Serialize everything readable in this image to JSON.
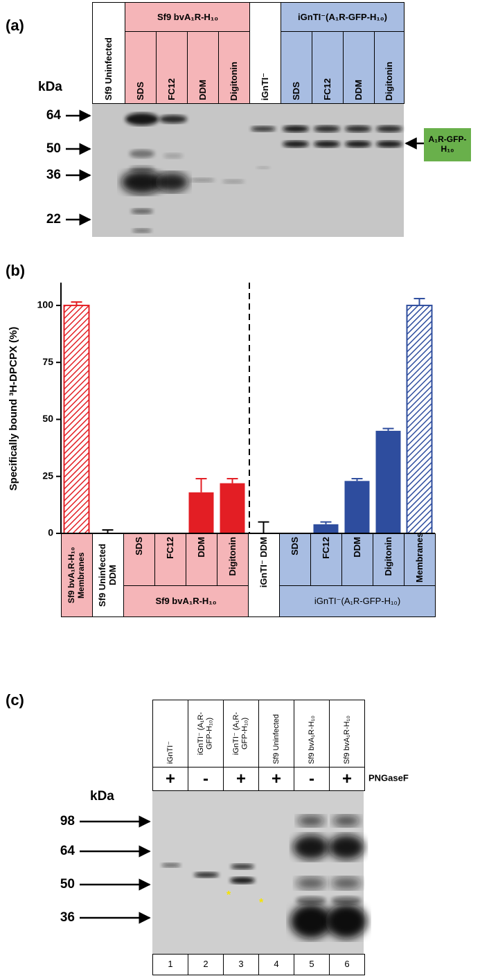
{
  "panel_a": {
    "label": "(a)",
    "kda": "kDa",
    "headers": {
      "uninfected": "Sf9 Uninfected",
      "group1": "Sf9 bvA₁R-H₁₀",
      "group1_lanes": [
        "SDS",
        "FC12",
        "DDM",
        "Digitonin"
      ],
      "control": "iGnTI⁻",
      "group2": "iGnTI⁻(A₁R-GFP-H₁₀)",
      "group2_lanes": [
        "SDS",
        "FC12",
        "DDM",
        "Digitonin"
      ]
    },
    "markers": [
      64,
      50,
      36,
      22
    ],
    "band_label": "A₁R-GFP-H₁₀"
  },
  "chart_data": {
    "type": "bar",
    "label": "(b)",
    "y_label": "Specifically bound ³H-DPCPX (%)",
    "categories": [
      "Sf9 bvA₁R-H₁₀ Membranes",
      "Sf9 Uninfected DDM",
      "SDS",
      "FC12",
      "DDM",
      "Digitonin",
      "iGnTI⁻ DDM",
      "SDS",
      "FC12",
      "DDM",
      "Digitonin",
      "Membranes"
    ],
    "values": [
      100,
      0,
      0,
      0,
      18,
      22,
      0,
      0,
      4,
      23,
      45,
      100
    ],
    "errors": [
      1.5,
      1.5,
      null,
      null,
      6,
      2,
      5,
      null,
      1,
      1,
      1,
      3
    ],
    "colors": [
      "#e31e24",
      "#000000",
      "#e31e24",
      "#e31e24",
      "#e31e24",
      "#e31e24",
      "#000000",
      "#2e4d9e",
      "#2e4d9e",
      "#2e4d9e",
      "#2e4d9e",
      "#2e4d9e"
    ],
    "hatch": [
      true,
      false,
      false,
      false,
      false,
      false,
      false,
      false,
      false,
      false,
      false,
      true
    ],
    "group_labels": [
      "Sf9 bvA₁R-H₁₀",
      "iGnTI⁻(A₁R-GFP-H₁₀)"
    ],
    "ylim": [
      0,
      110
    ],
    "yticks": [
      0,
      25,
      50,
      75,
      100
    ]
  },
  "panel_c": {
    "label": "(c)",
    "kda": "kDa",
    "pngase_label": "PNGaseF",
    "lanes": [
      {
        "sample": "iGnTI⁻",
        "pngase": "+",
        "number": 1
      },
      {
        "sample": "iGnTI⁻ (A₁R-GFP-H₁₀)",
        "pngase": "-",
        "number": 2
      },
      {
        "sample": "iGnTI⁻ (A₁R-GFP-H₁₀)",
        "pngase": "+",
        "number": 3
      },
      {
        "sample": "Sf9 Uninfected",
        "pngase": "+",
        "number": 4
      },
      {
        "sample": "Sf9 bvA₁R-H₁₀",
        "pngase": "-",
        "number": 5
      },
      {
        "sample": "Sf9 bvA₁R-H₁₀",
        "pngase": "+",
        "number": 6
      }
    ],
    "markers": [
      98,
      64,
      50,
      36
    ]
  }
}
